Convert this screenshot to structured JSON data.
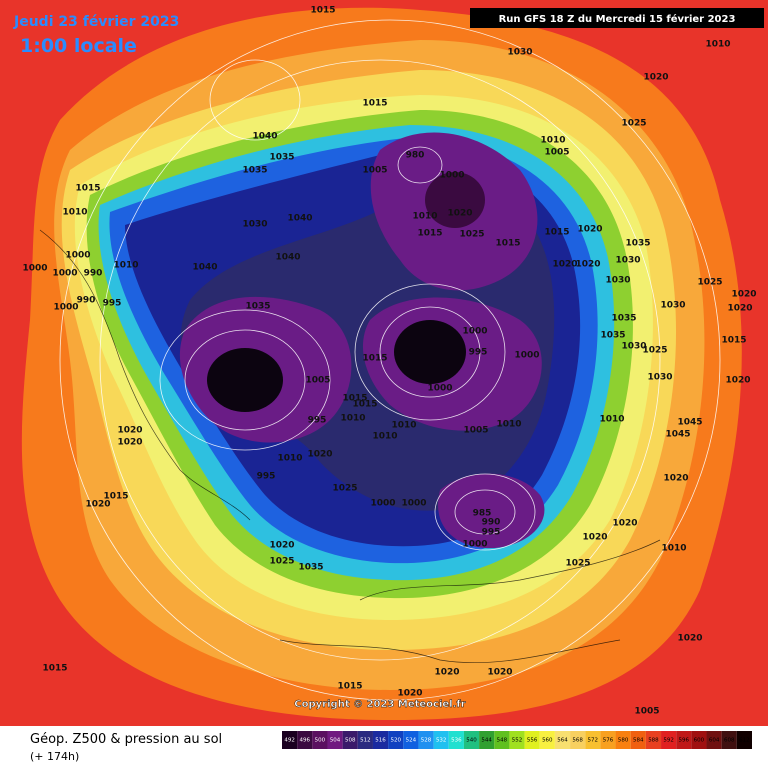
{
  "header": {
    "date": "Jeudi 23 février 2023",
    "time": "1:00 locale",
    "run": "Run GFS 18 Z du Mercredi 15 février 2023"
  },
  "copyright": "Copyright © 2023 Meteociel.fr",
  "caption": {
    "title": "Géop. Z500 & pression au sol",
    "lead": "(+ 174h)"
  },
  "legend": {
    "values": [
      492,
      496,
      500,
      504,
      508,
      512,
      516,
      520,
      524,
      528,
      532,
      536,
      540,
      544,
      548,
      552,
      556,
      560,
      564,
      568,
      572,
      576,
      580,
      584,
      588,
      592,
      596,
      600,
      604,
      608,
      612
    ],
    "colors": [
      "#1a0020",
      "#3a0a40",
      "#5a1060",
      "#701a80",
      "#3a1a6a",
      "#2a2a80",
      "#1a2aa0",
      "#1040c0",
      "#1060e0",
      "#2090f0",
      "#20c0f0",
      "#20e0d0",
      "#20c080",
      "#30a030",
      "#60c020",
      "#a0e020",
      "#e0f020",
      "#f8f040",
      "#f8e070",
      "#f8d060",
      "#f8c030",
      "#f8a020",
      "#f88010",
      "#f06010",
      "#e84020",
      "#e02020",
      "#c01818",
      "#a01010",
      "#701010",
      "#401010",
      "#100000"
    ]
  },
  "isobar_labels": [
    1015,
    1030,
    1010,
    1020,
    1015,
    1040,
    1035,
    1035,
    980,
    1005,
    1000,
    1010,
    1005,
    1025,
    1015,
    1010,
    1030,
    1040,
    1010,
    1020,
    1015,
    1025,
    1015,
    1015,
    1020,
    1035,
    1030,
    1020,
    1020,
    1040,
    1040,
    1000,
    1000,
    990,
    1000,
    1010,
    995,
    990,
    1000,
    1035,
    1030,
    1025,
    1020,
    1020,
    1030,
    1035,
    1000,
    995,
    1000,
    1015,
    1035,
    1030,
    1025,
    1015,
    1030,
    1020,
    1000,
    1005,
    1015,
    1015,
    995,
    1010,
    1010,
    1010,
    1005,
    1010,
    1010,
    1045,
    1045,
    1020,
    1020,
    1020,
    1010,
    995,
    1025,
    1020,
    1015,
    1020,
    1000,
    1000,
    985,
    990,
    995,
    1000,
    1020,
    1010,
    1020,
    1025,
    1020,
    1025,
    1035,
    1015,
    1015,
    1020,
    1020,
    1020,
    1020,
    1005
  ]
}
